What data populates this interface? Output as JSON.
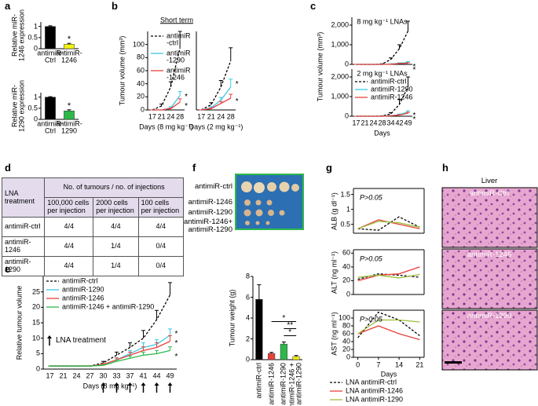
{
  "panel_labels": [
    "a",
    "b",
    "c",
    "d",
    "e",
    "f",
    "g",
    "h"
  ],
  "chart_data": [
    {
      "type": "bar",
      "ylabel": "Relative miR-\n1246 expression",
      "categories": [
        "antimiR-\nCtrl",
        "antimiR-\n1246"
      ],
      "values": [
        1,
        0.2
      ],
      "errors": [
        0.03,
        0.04
      ],
      "colors": [
        "#000000",
        "#f2f20f"
      ],
      "markers": [
        null,
        "*"
      ],
      "ylim": [
        0,
        1.2
      ],
      "yticks": [
        0,
        0.5,
        1
      ]
    },
    {
      "type": "bar",
      "ylabel": "Relative miR-\n1290 expression",
      "categories": [
        "antimiR-\nCtrl",
        "antimiR-\n1290"
      ],
      "values": [
        1,
        0.38
      ],
      "errors": [
        0.02,
        0.05
      ],
      "colors": [
        "#000000",
        "#2db84a"
      ],
      "markers": [
        null,
        "*"
      ],
      "ylim": [
        0,
        1.2
      ],
      "yticks": [
        0,
        0.5,
        1
      ]
    },
    {
      "type": "line",
      "title": "Short term",
      "ylabel": "Tumour volume (mm³)",
      "xlabel": "Days (8 mg kg⁻¹)",
      "categories": [
        "17",
        "21",
        "24",
        "28"
      ],
      "ylim": [
        0,
        120
      ],
      "yticks": [
        0,
        20,
        40,
        60,
        80,
        100
      ],
      "legend": "upper left",
      "series": [
        {
          "name": "antimiR\n-ctrl",
          "color": "#000000",
          "dash": true,
          "values": [
            0,
            6,
            35,
            95
          ],
          "errors": [
            0,
            3,
            8,
            25
          ]
        },
        {
          "name": "antimiR\n-1290",
          "color": "#3cc8e6",
          "values": [
            0,
            0,
            3,
            22
          ],
          "errors": [
            0,
            0,
            2,
            6
          ],
          "end_label": "*"
        },
        {
          "name": "antimiR\n-1246",
          "color": "#e8413c",
          "values": [
            0,
            0,
            2,
            12
          ],
          "errors": [
            0,
            0,
            1,
            5
          ],
          "end_label": "*"
        }
      ]
    },
    {
      "type": "line",
      "xlabel": "Days (2 mg kg⁻¹)",
      "categories": [
        "17",
        "21",
        "24",
        "28"
      ],
      "ylim": [
        0,
        120
      ],
      "series": [
        {
          "color": "#000000",
          "dash": true,
          "values": [
            0,
            8,
            35,
            75
          ],
          "errors": [
            0,
            3,
            10,
            20
          ]
        },
        {
          "color": "#3cc8e6",
          "values": [
            0,
            3,
            15,
            35
          ],
          "errors": [
            0,
            2,
            4,
            12
          ],
          "end_label": "*"
        },
        {
          "color": "#e8413c",
          "values": [
            0,
            2,
            10,
            18
          ],
          "errors": [
            0,
            1,
            3,
            6
          ],
          "end_label": "*"
        }
      ]
    },
    {
      "type": "line",
      "title": "8 mg kg⁻¹ LNAs",
      "ylabel": "Tumour volume (mm³)",
      "ylim": [
        0,
        2400
      ],
      "yticks": [
        0,
        {
          "value": 1000,
          "label": "1,000"
        },
        {
          "value": 2000,
          "label": "2,000"
        }
      ],
      "series": [
        {
          "color": "#000000",
          "dash": true,
          "values": [
            0,
            0,
            0,
            20,
            250,
            800,
            1700
          ],
          "errors": [
            0,
            0,
            0,
            10,
            80,
            200,
            500
          ]
        },
        {
          "color": "#3cc8e6",
          "values": [
            0,
            0,
            0,
            0,
            20,
            60,
            100
          ],
          "errors": [
            0,
            0,
            0,
            0,
            10,
            20,
            40
          ],
          "end_label": "*"
        },
        {
          "color": "#e8413c",
          "values": [
            0,
            0,
            0,
            0,
            10,
            40,
            60
          ],
          "errors": [
            0,
            0,
            0,
            0,
            5,
            15,
            25
          ],
          "end_label": "*"
        }
      ]
    },
    {
      "type": "line",
      "title": "2 mg kg⁻¹ LNAs",
      "xlabel": "Days",
      "categories": [
        "17",
        "21",
        "24",
        "28",
        "34",
        "42",
        "49"
      ],
      "ylim": [
        0,
        2400
      ],
      "yticks": [
        0,
        {
          "value": 1000,
          "label": "1,000"
        },
        {
          "value": 2000,
          "label": "2,000"
        }
      ],
      "legend": "upper left",
      "series": [
        {
          "name": "antimiR-ctrl",
          "color": "#000000",
          "dash": true,
          "values": [
            0,
            0,
            0,
            10,
            120,
            600,
            1500
          ],
          "errors": [
            0,
            0,
            0,
            5,
            60,
            250,
            500
          ]
        },
        {
          "name": "antimiR-1290",
          "color": "#3cc8e6",
          "values": [
            0,
            0,
            0,
            0,
            30,
            80,
            220
          ],
          "errors": [
            0,
            0,
            0,
            0,
            15,
            30,
            60
          ],
          "end_label": "*"
        },
        {
          "name": "antimiR-1246",
          "color": "#e8413c",
          "values": [
            0,
            0,
            0,
            0,
            20,
            60,
            150
          ],
          "errors": [
            0,
            0,
            0,
            0,
            10,
            25,
            50
          ],
          "end_label": "*"
        }
      ]
    },
    {
      "type": "line",
      "ylabel": "Relative tumour volume",
      "xlabel": "Days (8 mg kg⁻¹)",
      "categories": [
        "17",
        "21",
        "24",
        "27",
        "30",
        "33",
        "37",
        "41",
        "44",
        "49"
      ],
      "ylim": [
        0,
        30
      ],
      "yticks": [
        0,
        5,
        10,
        15,
        20,
        25
      ],
      "legend": "upper left",
      "treatment_label": "LNA treatment",
      "treatment_days": [
        "30",
        "33",
        "37",
        "41",
        "44",
        "49"
      ],
      "series": [
        {
          "name": "antimiR-ctrl",
          "color": "#000000",
          "dash": true,
          "values": [
            1,
            1,
            1,
            1,
            2,
            4.5,
            7,
            10,
            16,
            24
          ],
          "errors": [
            0,
            0,
            0,
            0,
            0.5,
            1,
            1.5,
            2.5,
            3,
            4
          ]
        },
        {
          "name": "antimiR-1290",
          "color": "#3cc8e6",
          "values": [
            1,
            1,
            1,
            1,
            1.5,
            3,
            5,
            7,
            8,
            11
          ],
          "errors": [
            0,
            0,
            0,
            0,
            0.3,
            0.7,
            1,
            1.5,
            1.5,
            2
          ],
          "end_label": "*"
        },
        {
          "name": "antimiR-1246",
          "color": "#e8413c",
          "values": [
            1,
            1,
            1,
            1,
            1.5,
            3,
            4.5,
            6,
            7,
            9
          ],
          "errors": [
            0,
            0,
            0,
            0,
            0.3,
            0.6,
            1,
            1.2,
            1.5,
            1.8
          ],
          "end_label": "*"
        },
        {
          "name": "antimiR-1246 + antimiR-1290",
          "color": "#2db84a",
          "values": [
            1,
            1,
            1,
            1,
            1.2,
            2.5,
            3.5,
            4.5,
            5,
            6
          ],
          "errors": [
            0,
            0,
            0,
            0,
            0.2,
            0.5,
            0.7,
            1,
            1,
            1.2
          ],
          "end_label": "*"
        }
      ]
    },
    {
      "type": "bar",
      "ylabel": "Tumour weight (g)",
      "categories": [
        "antimiR-ctrl",
        "antimiR-1246",
        "antimiR-1290",
        "antimiR-1246 +\nantimiR-1290"
      ],
      "values": [
        5.8,
        0.6,
        1.5,
        0.3
      ],
      "errors": [
        1.4,
        0.1,
        0.2,
        0.1
      ],
      "colors": [
        "#000000",
        "#e8413c",
        "#2db84a",
        "#f2f20f"
      ],
      "ylim": [
        0,
        8
      ],
      "yticks": [
        0,
        2,
        4,
        6,
        8
      ],
      "brackets": [
        {
          "text": "*",
          "between": [
            1,
            3
          ]
        },
        {
          "text": "**",
          "between": [
            2,
            3
          ]
        },
        {
          "text": "*",
          "between": [
            2,
            3
          ]
        }
      ]
    },
    {
      "type": "line",
      "ylabel": "ALB (g dl⁻¹)",
      "annotation": "P>0.05",
      "x": [
        0,
        7,
        14,
        21
      ],
      "xlim": [
        -1.5,
        22.5
      ],
      "ylim": [
        0.2,
        1.7
      ],
      "yticks": [
        0.5,
        1,
        1.5
      ],
      "series": [
        {
          "color": "#000000",
          "dash": true,
          "values": [
            0.35,
            0.3,
            0.75,
            0.4
          ]
        },
        {
          "color": "#e8413c",
          "values": [
            0.35,
            0.65,
            0.5,
            0.35
          ]
        },
        {
          "color": "#9bbf3c",
          "values": [
            0.35,
            0.6,
            0.55,
            0.4
          ]
        }
      ]
    },
    {
      "type": "line",
      "ylabel": "ALT (ng ml⁻¹)",
      "annotation": "P>0.05",
      "x": [
        0,
        7,
        14,
        21
      ],
      "xlim": [
        -1.5,
        22.5
      ],
      "ylim": [
        0,
        65
      ],
      "yticks": [
        0,
        20,
        40,
        60
      ],
      "series": [
        {
          "color": "#000000",
          "dash": true,
          "values": [
            22,
            30,
            28,
            25
          ]
        },
        {
          "color": "#e8413c",
          "values": [
            20,
            28,
            30,
            40
          ]
        },
        {
          "color": "#9bbf3c",
          "values": [
            25,
            28,
            24,
            29
          ]
        }
      ]
    },
    {
      "type": "line",
      "ylabel": "AST (ng ml⁻¹)",
      "annotation": "P>0.05",
      "xlabel": "Days",
      "x": [
        0,
        7,
        14,
        21
      ],
      "xlim": [
        -1.5,
        22.5
      ],
      "xticks": [
        0,
        7,
        14,
        21
      ],
      "ylim": [
        0,
        120
      ],
      "yticks": [
        0,
        20,
        40,
        60,
        80,
        100
      ],
      "legend": "below",
      "series": [
        {
          "name": "LNA antimiR-ctrl",
          "color": "#000000",
          "dash": true,
          "values": [
            50,
            115,
            95,
            55
          ]
        },
        {
          "name": "LNA antimiR-1246",
          "color": "#e8413c",
          "values": [
            60,
            80,
            60,
            45
          ]
        },
        {
          "name": "LNA antimiR-1290",
          "color": "#9bbf3c",
          "values": [
            60,
            95,
            95,
            90
          ]
        }
      ]
    }
  ],
  "table": {
    "corner": "LNA\ntreatment",
    "group_header": "No. of tumours / no. of injections",
    "columns": [
      "100,000 cells\nper injection",
      "2000 cells\nper injection",
      "100 cells\nper injection"
    ],
    "rows": [
      [
        "antimiR-ctrl",
        "4/4",
        "4/4",
        "4/4"
      ],
      [
        "antimiR-\n1246",
        "4/4",
        "1/4",
        "0/4"
      ],
      [
        "antimiR-\n1290",
        "4/4",
        "1/4",
        "0/4"
      ]
    ]
  },
  "photo": {
    "labels": [
      "antimiR-ctrl",
      "antimiR-1246",
      "antimiR-1290",
      "antimiR-1246+\nantimiR-1290"
    ]
  },
  "histology": {
    "title": "Liver",
    "labels": [
      "antimiR-Ctrl",
      "antimiR-1246",
      "antimiR-1290"
    ]
  }
}
